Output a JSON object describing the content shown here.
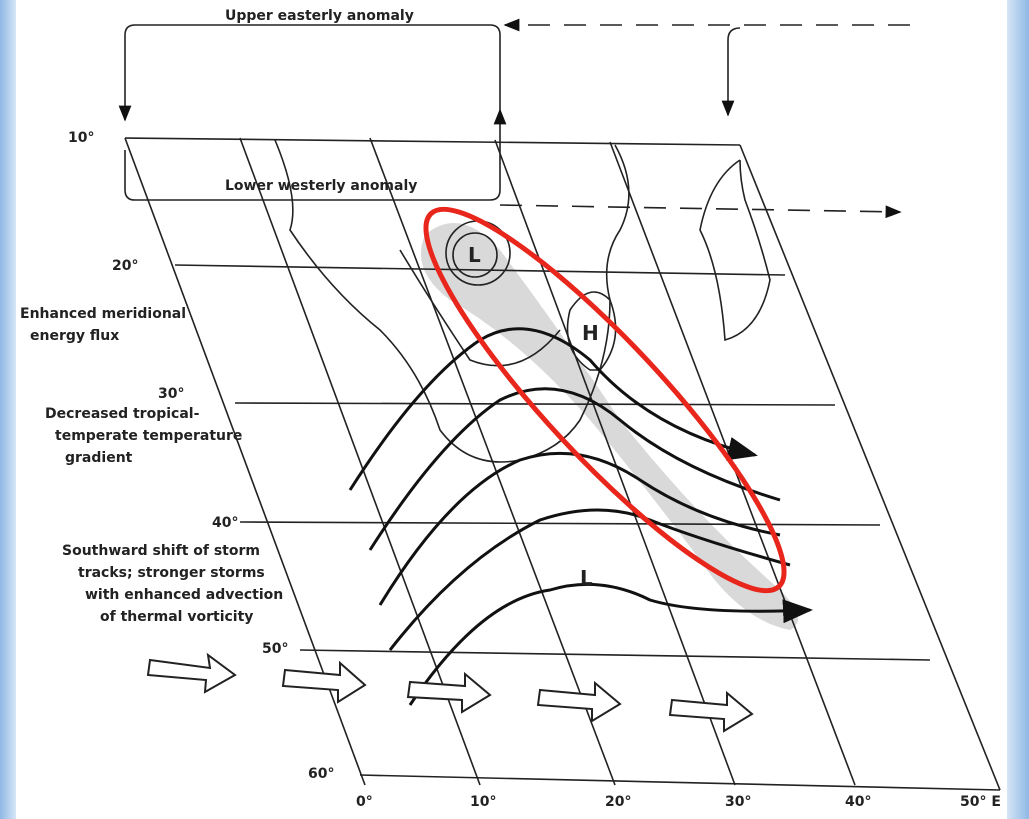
{
  "diagram": {
    "flows": {
      "upper": "Upper easterly anomaly",
      "lower": "Lower westerly anomaly"
    },
    "latitudes": [
      "10°",
      "20°",
      "30°",
      "40°",
      "50°",
      "60°"
    ],
    "longitudes": [
      "0°",
      "10°",
      "20°",
      "30°",
      "40°",
      "50° E"
    ],
    "annotations": [
      {
        "lines": [
          "Enhanced meridional",
          "energy flux"
        ]
      },
      {
        "lines": [
          "Decreased tropical-",
          "temperate temperature",
          "gradient"
        ]
      },
      {
        "lines": [
          "Southward shift of storm",
          "tracks; stronger storms",
          "with enhanced advection",
          "of thermal vorticity"
        ]
      }
    ],
    "pressure": [
      "L",
      "H",
      "L"
    ]
  }
}
